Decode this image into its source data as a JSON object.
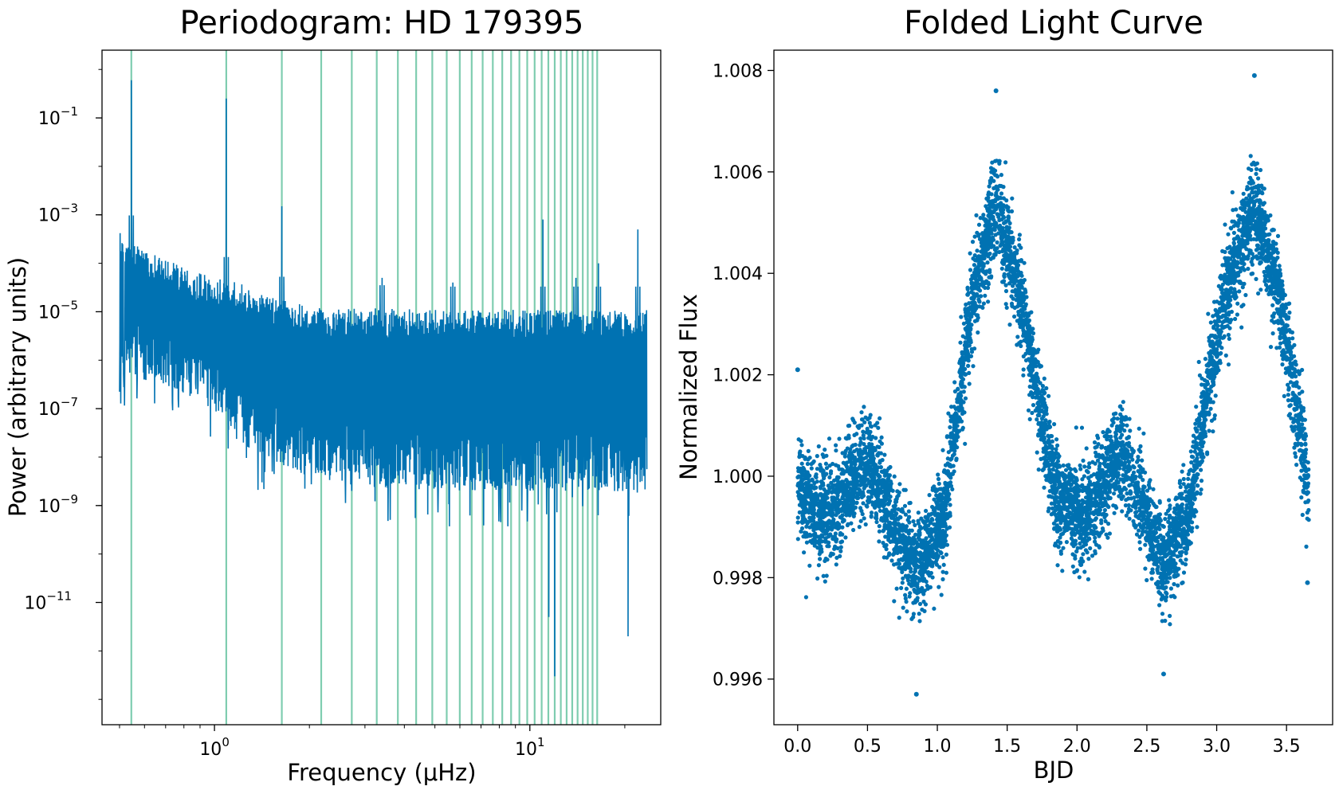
{
  "chart_data": [
    {
      "type": "line",
      "title": "Periodogram: HD 179395",
      "xlabel": "Frequency (μHz)",
      "ylabel": "Power (arbitrary units)",
      "xscale": "log",
      "yscale": "log",
      "xlim": [
        0.44,
        26
      ],
      "ylim": [
        3e-14,
        2.5
      ],
      "grid": false,
      "xticks": [
        {
          "value": 1,
          "base": "10",
          "exp": "0"
        },
        {
          "value": 10,
          "base": "10",
          "exp": "1"
        }
      ],
      "yticks": [
        {
          "value": 1e-11,
          "base": "10",
          "exp": "−11"
        },
        {
          "value": 1e-09,
          "base": "10",
          "exp": "−9"
        },
        {
          "value": 1e-07,
          "base": "10",
          "exp": "−7"
        },
        {
          "value": 1e-05,
          "base": "10",
          "exp": "−5"
        },
        {
          "value": 0.001,
          "base": "10",
          "exp": "−3"
        },
        {
          "value": 0.1,
          "base": "10",
          "exp": "−1"
        }
      ],
      "harmonic_lines": {
        "fundamental": 0.545,
        "count": 30,
        "color": "#7fcdb0"
      },
      "series": [
        {
          "color": "#0072b2",
          "x_range": [
            0.5,
            23.5
          ],
          "envelope": {
            "x": [
              0.5,
              0.6,
              0.8,
              1.0,
              1.2,
              1.5,
              2,
              3,
              5,
              10,
              23.5
            ],
            "upper": [
              0.0005,
              0.0002,
              8e-05,
              5e-05,
              4e-05,
              2e-05,
              1.3e-05,
              1.2e-05,
              1.1e-05,
              1.1e-05,
              1.1e-05
            ],
            "lower": [
              1e-06,
              1e-06,
              5e-07,
              2e-07,
              5e-08,
              2e-08,
              1e-08,
              6e-09,
              5e-09,
              5e-09,
              5e-09
            ]
          },
          "peaks": [
            {
              "x": 0.545,
              "y": 0.6
            },
            {
              "x": 1.09,
              "y": 0.25
            },
            {
              "x": 1.635,
              "y": 0.0015
            },
            {
              "x": 3.4,
              "y": 5e-05
            },
            {
              "x": 5.7,
              "y": 4e-05
            },
            {
              "x": 11,
              "y": 0.0008
            },
            {
              "x": 14,
              "y": 5e-05
            },
            {
              "x": 16.5,
              "y": 0.0001
            },
            {
              "x": 22,
              "y": 0.0005
            }
          ],
          "dips": [
            {
              "x": 11.5,
              "y": 5e-12
            },
            {
              "x": 12,
              "y": 3e-13
            },
            {
              "x": 20.5,
              "y": 2e-12
            }
          ]
        }
      ]
    },
    {
      "type": "scatter",
      "title": "Folded Light Curve",
      "xlabel": "BJD",
      "ylabel": "Normalized Flux",
      "xlim": [
        -0.17,
        3.83
      ],
      "ylim": [
        0.9951,
        1.0084
      ],
      "grid": false,
      "xticks": [
        "0.0",
        "0.5",
        "1.0",
        "1.5",
        "2.0",
        "2.5",
        "3.0",
        "3.5"
      ],
      "yticks": [
        "0.996",
        "0.998",
        "1.000",
        "1.002",
        "1.004",
        "1.006",
        "1.008"
      ],
      "series": [
        {
          "color": "#0072b2",
          "x_range": [
            0.0,
            3.66
          ],
          "mean_curve": {
            "x": [
              0.0,
              0.2,
              0.5,
              0.85,
              1.05,
              1.25,
              1.42,
              1.6,
              1.85,
              2.05,
              2.33,
              2.62,
              2.8,
              3.05,
              3.27,
              3.45,
              3.66
            ],
            "y": [
              0.9997,
              0.9992,
              1.0003,
              0.9981,
              0.9992,
              1.0035,
              1.0054,
              1.0035,
              0.9996,
              0.9992,
              1.0005,
              0.9982,
              0.9993,
              1.0035,
              1.0054,
              1.0035,
              0.9998
            ]
          },
          "scatter_sigma": 0.0006,
          "outliers": [
            {
              "x": 1.42,
              "y": 1.0076
            },
            {
              "x": 3.27,
              "y": 1.0079
            },
            {
              "x": 0.85,
              "y": 0.9957
            },
            {
              "x": 2.62,
              "y": 0.9961
            },
            {
              "x": 0.0,
              "y": 1.0021
            },
            {
              "x": 3.65,
              "y": 0.9979
            }
          ]
        }
      ]
    }
  ]
}
